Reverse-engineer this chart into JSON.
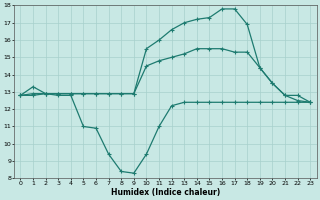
{
  "xlabel": "Humidex (Indice chaleur)",
  "xlim": [
    -0.5,
    23.5
  ],
  "ylim": [
    8,
    18
  ],
  "xticks": [
    0,
    1,
    2,
    3,
    4,
    5,
    6,
    7,
    8,
    9,
    10,
    11,
    12,
    13,
    14,
    15,
    16,
    17,
    18,
    19,
    20,
    21,
    22,
    23
  ],
  "yticks": [
    8,
    9,
    10,
    11,
    12,
    13,
    14,
    15,
    16,
    17,
    18
  ],
  "bg_color": "#c8e8e4",
  "line_color": "#1e7b70",
  "grid_color": "#a8d0cc",
  "line1_x": [
    0,
    1,
    2,
    3,
    4,
    5,
    6,
    7,
    8,
    9,
    10,
    11,
    12,
    13,
    14,
    15,
    16,
    17,
    18,
    19,
    20,
    21,
    22,
    23
  ],
  "line1_y": [
    12.8,
    13.3,
    12.9,
    12.8,
    12.8,
    11.0,
    10.9,
    9.4,
    8.4,
    8.3,
    9.4,
    11.0,
    12.2,
    12.4,
    12.4,
    12.4,
    12.4,
    12.4,
    12.4,
    12.4,
    12.4,
    12.4,
    12.4,
    12.4
  ],
  "line2_x": [
    0,
    1,
    2,
    3,
    4,
    5,
    6,
    7,
    8,
    9,
    10,
    11,
    12,
    13,
    14,
    15,
    16,
    17,
    18,
    19,
    20,
    21,
    22,
    23
  ],
  "line2_y": [
    12.8,
    12.9,
    12.9,
    12.9,
    12.9,
    12.9,
    12.9,
    12.9,
    12.9,
    12.9,
    14.5,
    14.8,
    15.0,
    15.2,
    15.5,
    15.5,
    15.5,
    15.3,
    15.3,
    14.4,
    13.5,
    12.8,
    12.5,
    12.4
  ],
  "line3_x": [
    0,
    1,
    2,
    3,
    4,
    5,
    6,
    7,
    8,
    9,
    10,
    11,
    12,
    13,
    14,
    15,
    16,
    17,
    18,
    19,
    20,
    21,
    22,
    23
  ],
  "line3_y": [
    12.8,
    12.8,
    12.9,
    12.9,
    12.9,
    12.9,
    12.9,
    12.9,
    12.9,
    12.9,
    15.5,
    16.0,
    16.6,
    17.0,
    17.2,
    17.3,
    17.8,
    17.8,
    16.9,
    14.4,
    13.5,
    12.8,
    12.8,
    12.4
  ],
  "markersize": 3.0,
  "linewidth": 0.9
}
